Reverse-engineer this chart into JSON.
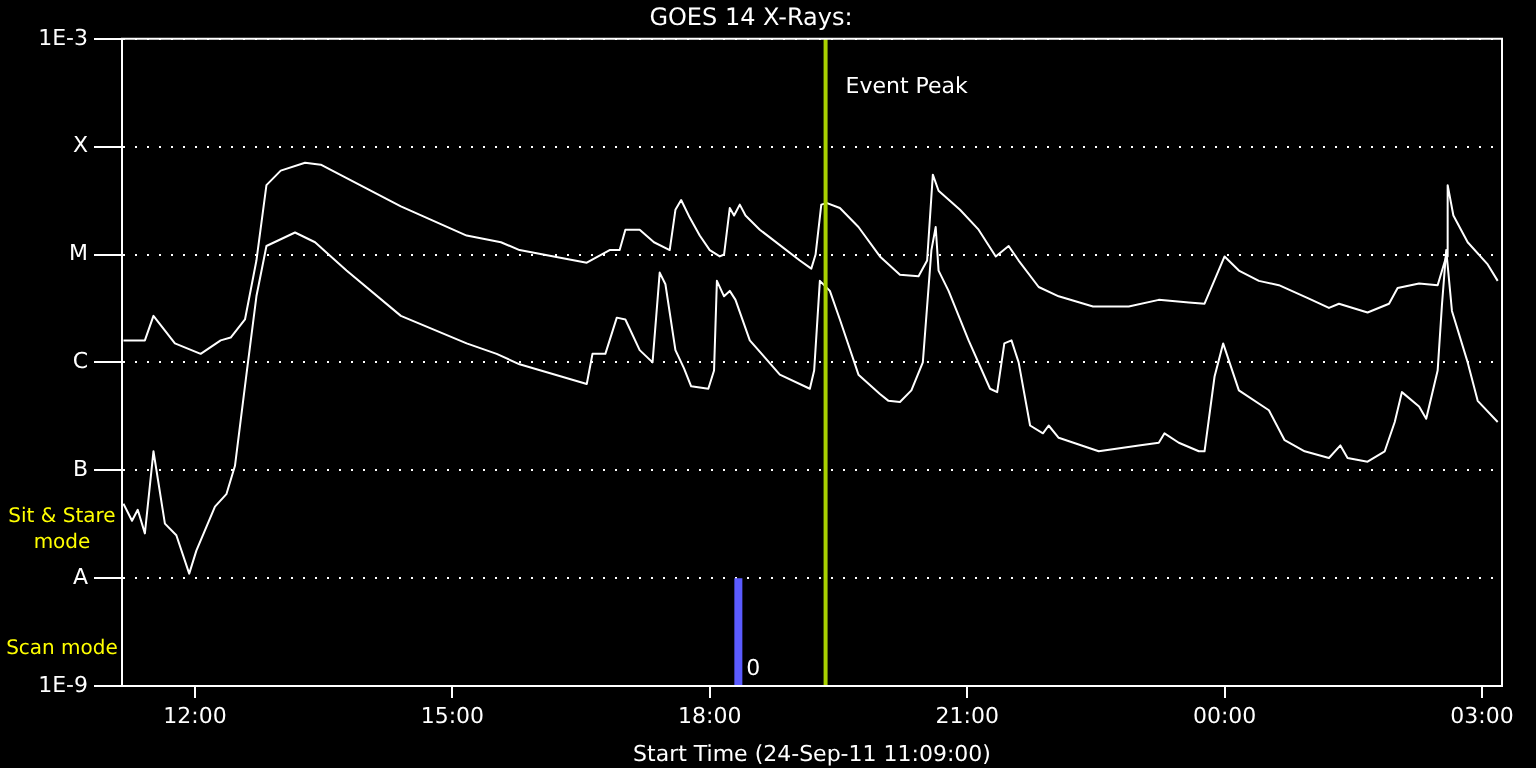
{
  "chart_data": {
    "type": "line",
    "title": "GOES 14 X-Rays:",
    "xlabel": "Start Time (24-Sep-11 11:09:00)",
    "xlim": [
      "--09-24T11:09",
      "--09-25T03:14"
    ],
    "xticks": [
      {
        "value": "--09-24T12:00",
        "label": "12:00"
      },
      {
        "value": "--09-24T15:00",
        "label": "15:00"
      },
      {
        "value": "--09-24T18:00",
        "label": "18:00"
      },
      {
        "value": "--09-24T21:00",
        "label": "21:00"
      },
      {
        "value": "--09-25T00:00",
        "label": "00:00"
      },
      {
        "value": "--09-25T03:00",
        "label": "03:00"
      }
    ],
    "ylim": [
      1e-09,
      0.001
    ],
    "yticks": [
      {
        "value": 1e-09,
        "label": "1E-9"
      },
      {
        "value": 1e-08,
        "label": "A"
      },
      {
        "value": 1e-07,
        "label": "B"
      },
      {
        "value": 1e-06,
        "label": "C"
      },
      {
        "value": 1e-05,
        "label": "M"
      },
      {
        "value": 0.0001,
        "label": "X"
      },
      {
        "value": 0.001,
        "label": "1E-3"
      }
    ],
    "log": "y",
    "grid": "y",
    "legend": false,
    "marker": "none",
    "line_style": "solid",
    "series": [
      {
        "color": "#ffffff",
        "x": [
          "--09-24T11:10",
          "--09-24T11:25",
          "--09-24T11:31",
          "--09-24T11:46",
          "--09-24T12:04",
          "--09-24T12:18",
          "--09-24T12:25",
          "--09-24T12:35",
          "--09-24T12:43",
          "--09-24T12:50",
          "--09-24T13:00",
          "--09-24T13:17",
          "--09-24T13:28",
          "--09-24T14:24",
          "--09-24T15:10",
          "--09-24T15:34",
          "--09-24T15:47",
          "--09-24T16:34",
          "--09-24T16:50",
          "--09-24T16:57",
          "--09-24T17:01",
          "--09-24T17:11",
          "--09-24T17:21",
          "--09-24T17:32",
          "--09-24T17:36",
          "--09-24T17:40",
          "--09-24T17:46",
          "--09-24T17:53",
          "--09-24T18:00",
          "--09-24T18:07",
          "--09-24T18:10",
          "--09-24T18:14",
          "--09-24T18:17",
          "--09-24T18:21",
          "--09-24T18:25",
          "--09-24T18:35",
          "--09-24T19:03",
          "--09-24T19:11",
          "--09-24T19:14",
          "--09-24T19:18",
          "--09-24T19:22",
          "--09-24T19:31",
          "--09-24T19:44",
          "--09-24T19:59",
          "--09-24T20:13",
          "--09-24T20:26",
          "--09-24T20:32",
          "--09-24T20:36",
          "--09-24T20:40",
          "--09-24T20:55",
          "--09-24T21:08",
          "--09-24T21:20",
          "--09-24T21:29",
          "--09-24T21:36",
          "--09-24T21:50",
          "--09-24T22:04",
          "--09-24T22:28",
          "--09-24T22:53",
          "--09-24T23:14",
          "--09-24T23:35",
          "--09-24T23:46",
          "--09-25T00:00",
          "--09-25T00:10",
          "--09-25T00:24",
          "--09-25T00:38",
          "--09-25T00:59",
          "--09-25T01:13",
          "--09-25T01:20",
          "--09-25T01:40",
          "--09-25T01:55",
          "--09-25T02:01",
          "--09-25T02:16",
          "--09-25T02:29",
          "--09-25T02:35",
          "--09-25T02:36",
          "--09-25T02:40",
          "--09-25T02:50",
          "--09-25T03:04",
          "--09-25T03:11"
        ],
        "values": [
          1.6e-06,
          1.6e-06,
          2.7e-06,
          1.5e-06,
          1.2e-06,
          1.6e-06,
          1.7e-06,
          2.5e-06,
          8.8e-06,
          4.4e-05,
          6e-05,
          7.1e-05,
          6.8e-05,
          2.8e-05,
          1.5e-05,
          1.3e-05,
          1.1e-05,
          8.4e-06,
          1.1e-05,
          1.1e-05,
          1.7e-05,
          1.7e-05,
          1.3e-05,
          1.1e-05,
          2.6e-05,
          3.2e-05,
          2.2e-05,
          1.5e-05,
          1.1e-05,
          9.6e-06,
          1e-05,
          2.7e-05,
          2.3e-05,
          2.9e-05,
          2.3e-05,
          1.7e-05,
          8.8e-06,
          7.4e-06,
          1e-05,
          2.9e-05,
          3e-05,
          2.7e-05,
          1.8e-05,
          9.6e-06,
          6.5e-06,
          6.3e-06,
          8.8e-06,
          5.5e-05,
          3.9e-05,
          2.6e-05,
          1.7e-05,
          9.6e-06,
          1.2e-05,
          8.8e-06,
          5e-06,
          4.1e-06,
          3.3e-06,
          3.3e-06,
          3.8e-06,
          3.6e-06,
          3.5e-06,
          9.6e-06,
          7.1e-06,
          5.7e-06,
          5.2e-06,
          3.9e-06,
          3.2e-06,
          3.5e-06,
          2.9e-06,
          3.5e-06,
          4.9e-06,
          5.4e-06,
          5.2e-06,
          9.6e-06,
          4.4e-05,
          2.3e-05,
          1.3e-05,
          8.1e-06,
          5.7e-06
        ]
      },
      {
        "color": "#ffffff",
        "x": [
          "--09-24T11:10",
          "--09-24T11:16",
          "--09-24T11:20",
          "--09-24T11:25",
          "--09-24T11:31",
          "--09-24T11:39",
          "--09-24T11:47",
          "--09-24T11:56",
          "--09-24T12:01",
          "--09-24T12:14",
          "--09-24T12:22",
          "--09-24T12:28",
          "--09-24T12:36",
          "--09-24T12:43",
          "--09-24T12:50",
          "--09-24T13:10",
          "--09-24T13:24",
          "--09-24T13:46",
          "--09-24T14:24",
          "--09-24T15:10",
          "--09-24T15:31",
          "--09-24T15:47",
          "--09-24T16:34",
          "--09-24T16:38",
          "--09-24T16:47",
          "--09-24T16:55",
          "--09-24T17:01",
          "--09-24T17:11",
          "--09-24T17:20",
          "--09-24T17:25",
          "--09-24T17:29",
          "--09-24T17:36",
          "--09-24T17:42",
          "--09-24T17:47",
          "--09-24T17:59",
          "--09-24T18:03",
          "--09-24T18:05",
          "--09-24T18:10",
          "--09-24T18:14",
          "--09-24T18:18",
          "--09-24T18:28",
          "--09-24T18:49",
          "--09-24T19:10",
          "--09-24T19:13",
          "--09-24T19:17",
          "--09-24T19:24",
          "--09-24T19:31",
          "--09-24T19:44",
          "--09-24T19:59",
          "--09-24T20:05",
          "--09-24T20:13",
          "--09-24T20:21",
          "--09-24T20:29",
          "--09-24T20:35",
          "--09-24T20:38",
          "--09-24T20:40",
          "--09-24T20:47",
          "--09-24T21:01",
          "--09-24T21:16",
          "--09-24T21:21",
          "--09-24T21:26",
          "--09-24T21:31",
          "--09-24T21:36",
          "--09-24T21:44",
          "--09-24T21:53",
          "--09-24T21:57",
          "--09-24T22:04",
          "--09-24T22:32",
          "--09-24T23:00",
          "--09-24T23:14",
          "--09-24T23:18",
          "--09-24T23:28",
          "--09-24T23:42",
          "--09-24T23:46",
          "--09-24T23:53",
          "--09-24T23:59",
          "--09-25T00:10",
          "--09-25T00:31",
          "--09-25T00:42",
          "--09-25T00:56",
          "--09-25T01:13",
          "--09-25T01:21",
          "--09-25T01:26",
          "--09-25T01:40",
          "--09-25T01:52",
          "--09-25T01:59",
          "--09-25T02:04",
          "--09-25T02:16",
          "--09-25T02:21",
          "--09-25T02:29",
          "--09-25T02:32",
          "--09-25T02:35",
          "--09-25T02:39",
          "--09-25T02:50",
          "--09-25T02:57",
          "--09-25T03:11"
        ],
        "values": [
          4.9e-08,
          3.4e-08,
          4.3e-08,
          2.6e-08,
          1.5e-07,
          3.2e-08,
          2.5e-08,
          1.1e-08,
          1.8e-08,
          4.6e-08,
          6e-08,
          1.1e-07,
          7.7e-07,
          4.1e-06,
          1.2e-05,
          1.6e-05,
          1.3e-05,
          7.1e-06,
          2.7e-06,
          1.5e-06,
          1.2e-06,
          9.6e-07,
          6.3e-07,
          1.2e-06,
          1.2e-06,
          2.6e-06,
          2.5e-06,
          1.3e-06,
          1e-06,
          6.8e-06,
          5.3e-06,
          1.3e-06,
          8.8e-07,
          6e-07,
          5.7e-07,
          8.4e-07,
          5.7e-06,
          4.1e-06,
          4.6e-06,
          3.8e-06,
          1.6e-06,
          7.7e-07,
          5.7e-07,
          8.4e-07,
          5.7e-06,
          4.6e-06,
          2.5e-06,
          7.7e-07,
          5.1e-07,
          4.4e-07,
          4.3e-07,
          5.5e-07,
          1e-06,
          1.1e-05,
          1.8e-05,
          7.1e-06,
          4.6e-06,
          1.6e-06,
          5.7e-07,
          5.3e-07,
          1.5e-06,
          1.6e-06,
          1e-06,
          2.6e-07,
          2.2e-07,
          2.6e-07,
          2e-07,
          1.5e-07,
          1.7e-07,
          1.8e-07,
          2.2e-07,
          1.8e-07,
          1.5e-07,
          1.5e-07,
          7.4e-07,
          1.5e-06,
          5.5e-07,
          3.6e-07,
          1.9e-07,
          1.5e-07,
          1.3e-07,
          1.7e-07,
          1.3e-07,
          1.2e-07,
          1.5e-07,
          2.8e-07,
          5.3e-07,
          3.9e-07,
          3e-07,
          8.4e-07,
          3.4e-06,
          1.1e-05,
          3e-06,
          1e-06,
          4.4e-07,
          2.8e-07
        ]
      },
      {
        "color": "#5b5bff",
        "x": [
          "--09-24T18:20",
          "--09-24T18:20"
        ],
        "values": [
          1e-09,
          1e-08
        ]
      }
    ],
    "ref_lines": [
      {
        "axis": "x",
        "value": "--09-24T19:21",
        "label": "Event Peak",
        "color": "#a8d000"
      }
    ],
    "annotations": [
      "Sit & Stare mode",
      "Scan mode",
      "0"
    ]
  }
}
